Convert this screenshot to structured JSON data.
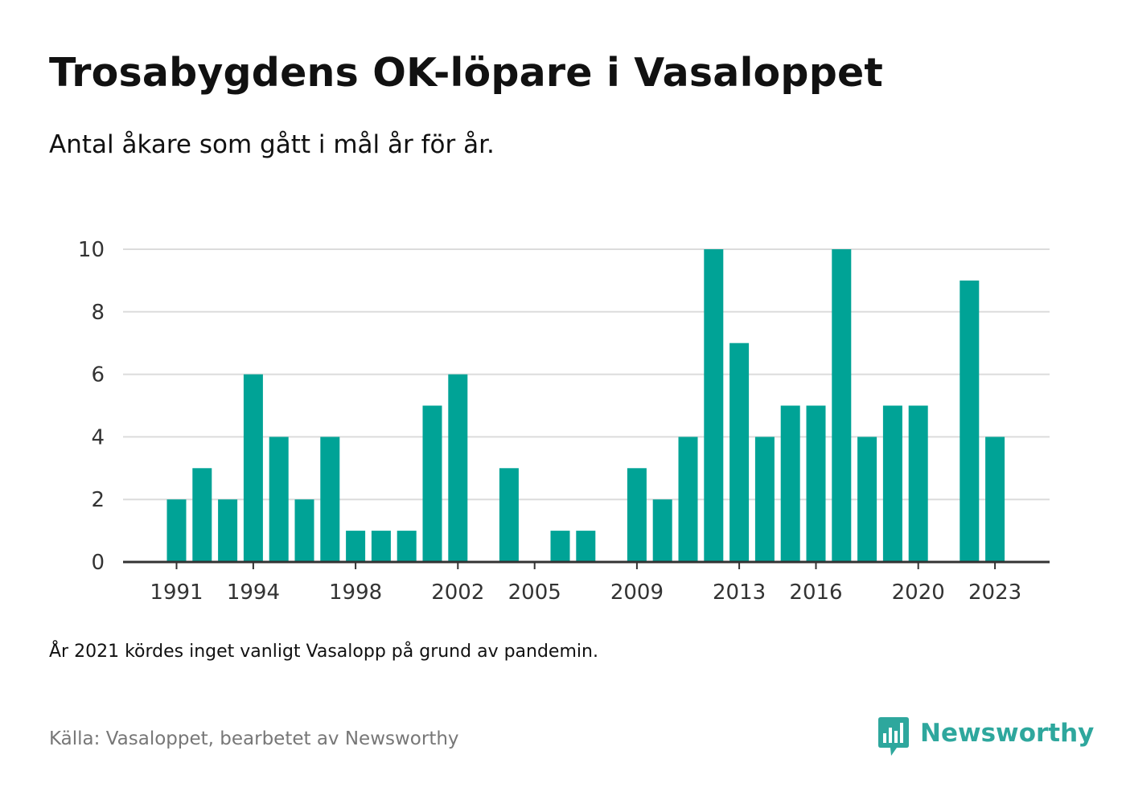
{
  "title": "Trosabygdens OK-löpare i Vasaloppet",
  "subtitle": "Antal åkare som gått i mål år för år.",
  "note": "År 2021 kördes inget vanligt Vasalopp på grund av pandemin.",
  "source": "Källa: Vasaloppet, bearbetet av Newsworthy",
  "brand": {
    "name": "Newsworthy",
    "color": "#2ea79d",
    "logo_icon": "newsworthy-bar-chart-bubble-icon"
  },
  "colors": {
    "bar": "#00a396",
    "grid": "#dcdcdc",
    "axis": "#333333"
  },
  "chart_data": {
    "type": "bar",
    "title": "",
    "xlabel": "",
    "ylabel": "",
    "x": [
      1991,
      1992,
      1993,
      1994,
      1995,
      1996,
      1997,
      1998,
      1999,
      2000,
      2001,
      2002,
      2003,
      2004,
      2005,
      2006,
      2007,
      2008,
      2009,
      2010,
      2011,
      2012,
      2013,
      2014,
      2015,
      2016,
      2017,
      2018,
      2019,
      2020,
      2021,
      2022,
      2023
    ],
    "values": [
      2,
      3,
      2,
      6,
      4,
      2,
      4,
      1,
      1,
      1,
      5,
      6,
      0,
      3,
      0,
      1,
      1,
      0,
      3,
      2,
      4,
      10,
      7,
      4,
      5,
      5,
      10,
      4,
      5,
      5,
      0,
      9,
      4
    ],
    "x_tick_labels": [
      "1991",
      "1994",
      "1998",
      "2002",
      "2005",
      "2009",
      "2013",
      "2016",
      "2020",
      "2023"
    ],
    "y_ticks": [
      0,
      2,
      4,
      6,
      8,
      10
    ],
    "ylim": [
      0,
      10
    ],
    "grid": true,
    "legend": "none"
  }
}
